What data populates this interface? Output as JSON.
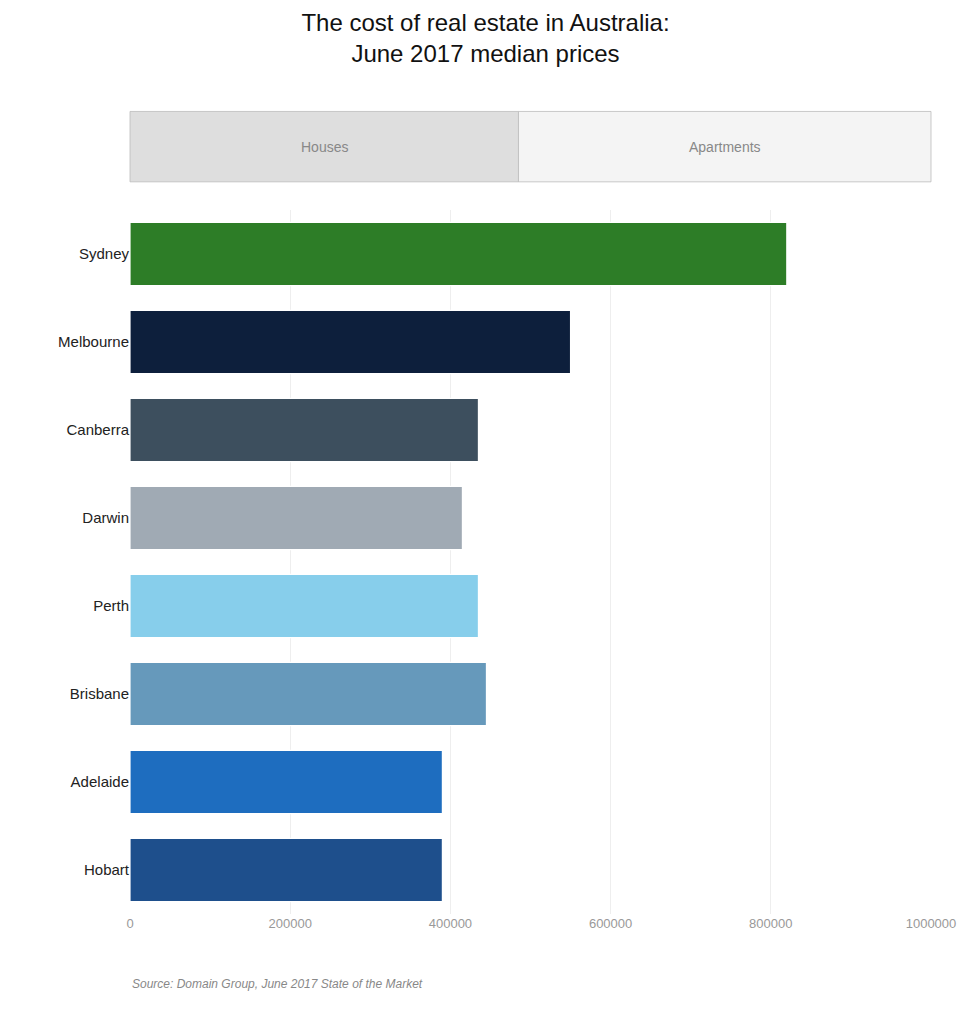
{
  "chart_data": {
    "type": "bar",
    "orientation": "horizontal",
    "title": "The cost of real estate in Australia:\nJune 2017 median prices",
    "categories": [
      "Sydney",
      "Melbourne",
      "Canberra",
      "Darwin",
      "Perth",
      "Brisbane",
      "Adelaide",
      "Hobart"
    ],
    "values": [
      820000,
      550000,
      435000,
      415000,
      435000,
      445000,
      390000,
      390000
    ],
    "colors": [
      "#2d7d27",
      "#0d1f3c",
      "#3d4f5e",
      "#a0aab4",
      "#87ceeb",
      "#6699bb",
      "#1e6dbf",
      "#1e4f8c"
    ],
    "xlim": [
      0,
      1000000
    ],
    "xticks": [
      0,
      200000,
      400000,
      600000,
      800000,
      1000000
    ],
    "grid": true,
    "annotations": [
      "Houses",
      "Apartments",
      "Source: Domain Group, June 2017 State of the Market"
    ]
  }
}
